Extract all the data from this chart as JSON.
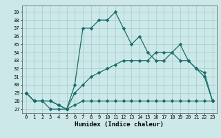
{
  "xlabel": "Humidex (Indice chaleur)",
  "ylabel": "",
  "bg_color": "#cce8e8",
  "grid_color": "#aacfcf",
  "line_color": "#1a6b6b",
  "xlim": [
    -0.5,
    23.5
  ],
  "ylim": [
    26.5,
    39.8
  ],
  "yticks": [
    27,
    28,
    29,
    30,
    31,
    32,
    33,
    34,
    35,
    36,
    37,
    38,
    39
  ],
  "xticks": [
    0,
    1,
    2,
    3,
    4,
    5,
    6,
    7,
    8,
    9,
    10,
    11,
    12,
    13,
    14,
    15,
    16,
    17,
    18,
    19,
    20,
    21,
    22,
    23
  ],
  "line1_x": [
    0,
    1,
    2,
    3,
    4,
    5,
    6,
    7,
    8,
    9,
    10,
    11,
    12,
    13,
    14,
    15,
    16,
    17,
    19,
    20,
    21,
    22,
    23
  ],
  "line1_y": [
    29,
    28,
    28,
    27,
    27,
    27,
    30,
    37,
    37,
    38,
    38,
    39,
    37,
    35,
    36,
    34,
    33,
    33,
    35,
    33,
    32,
    31,
    28
  ],
  "line2_x": [
    0,
    1,
    2,
    3,
    4,
    5,
    6,
    7,
    8,
    9,
    10,
    11,
    12,
    13,
    14,
    15,
    16,
    17,
    18,
    19,
    20,
    21,
    22,
    23
  ],
  "line2_y": [
    29,
    28,
    28,
    28,
    27.5,
    27,
    29,
    30,
    31,
    31.5,
    32,
    32.5,
    33,
    33,
    33,
    33,
    34,
    34,
    34,
    33,
    33,
    32,
    31.5,
    28
  ],
  "line3_x": [
    0,
    1,
    2,
    3,
    4,
    5,
    6,
    7,
    8,
    9,
    10,
    11,
    12,
    13,
    14,
    15,
    16,
    17,
    18,
    19,
    20,
    21,
    22,
    23
  ],
  "line3_y": [
    29,
    28,
    28,
    28,
    27.5,
    27,
    27.5,
    28,
    28,
    28,
    28,
    28,
    28,
    28,
    28,
    28,
    28,
    28,
    28,
    28,
    28,
    28,
    28,
    28
  ]
}
